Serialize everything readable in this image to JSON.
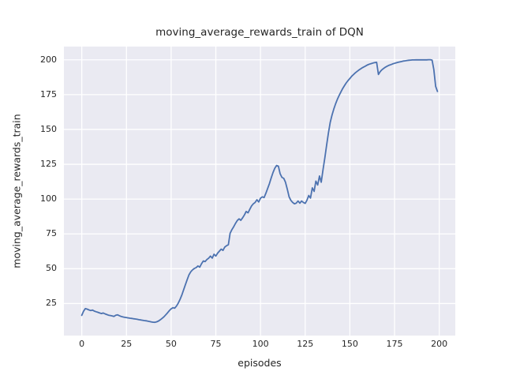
{
  "chart_data": {
    "type": "line",
    "title": "moving_average_rewards_train of DQN",
    "xlabel": "episodes",
    "ylabel": "moving_average_rewards_train",
    "x_ticks": [
      0,
      25,
      50,
      75,
      100,
      125,
      150,
      175,
      200
    ],
    "y_ticks": [
      25,
      50,
      75,
      100,
      125,
      150,
      175,
      200
    ],
    "xlim": [
      -10,
      209
    ],
    "ylim": [
      2,
      209.5
    ],
    "grid": true,
    "legend_position": "none",
    "style": {
      "line_color": "#4C72B0",
      "axes_background": "#EAEAF2",
      "grid_color": "#FFFFFF",
      "text_color": "#262626",
      "figure_background": "#FFFFFF"
    },
    "series": [
      {
        "name": "DQN",
        "points": [
          [
            0,
            16.5
          ],
          [
            1,
            19.5
          ],
          [
            2,
            21.4
          ],
          [
            3,
            21.0
          ],
          [
            4,
            20.4
          ],
          [
            5,
            20.0
          ],
          [
            6,
            20.3
          ],
          [
            7,
            19.6
          ],
          [
            8,
            19.1
          ],
          [
            9,
            18.7
          ],
          [
            10,
            18.2
          ],
          [
            11,
            17.8
          ],
          [
            12,
            18.2
          ],
          [
            13,
            17.6
          ],
          [
            14,
            17.1
          ],
          [
            15,
            16.6
          ],
          [
            16,
            16.4
          ],
          [
            17,
            16.1
          ],
          [
            18,
            15.8
          ],
          [
            19,
            16.6
          ],
          [
            20,
            16.9
          ],
          [
            21,
            16.3
          ],
          [
            22,
            15.7
          ],
          [
            23,
            15.4
          ],
          [
            24,
            15.1
          ],
          [
            25,
            14.9
          ],
          [
            26,
            14.7
          ],
          [
            27,
            14.5
          ],
          [
            28,
            14.3
          ],
          [
            29,
            14.1
          ],
          [
            30,
            13.9
          ],
          [
            31,
            13.7
          ],
          [
            32,
            13.4
          ],
          [
            33,
            13.2
          ],
          [
            34,
            13.0
          ],
          [
            35,
            12.8
          ],
          [
            36,
            12.6
          ],
          [
            37,
            12.3
          ],
          [
            38,
            12.1
          ],
          [
            39,
            11.8
          ],
          [
            40,
            11.6
          ],
          [
            41,
            11.5
          ],
          [
            42,
            11.9
          ],
          [
            43,
            12.5
          ],
          [
            44,
            13.4
          ],
          [
            45,
            14.4
          ],
          [
            46,
            15.5
          ],
          [
            47,
            16.9
          ],
          [
            48,
            18.4
          ],
          [
            49,
            19.9
          ],
          [
            50,
            21.2
          ],
          [
            51,
            22.0
          ],
          [
            52,
            21.7
          ],
          [
            53,
            23.2
          ],
          [
            54,
            25.3
          ],
          [
            55,
            28.0
          ],
          [
            56,
            31.2
          ],
          [
            57,
            34.8
          ],
          [
            58,
            38.6
          ],
          [
            59,
            42.3
          ],
          [
            60,
            45.6
          ],
          [
            61,
            47.8
          ],
          [
            62,
            49.2
          ],
          [
            63,
            50.2
          ],
          [
            64,
            50.8
          ],
          [
            65,
            52.0
          ],
          [
            66,
            51.1
          ],
          [
            67,
            53.6
          ],
          [
            68,
            55.6
          ],
          [
            69,
            55.1
          ],
          [
            70,
            56.6
          ],
          [
            71,
            57.6
          ],
          [
            72,
            59.1
          ],
          [
            73,
            57.6
          ],
          [
            74,
            60.4
          ],
          [
            75,
            59.1
          ],
          [
            76,
            61.2
          ],
          [
            77,
            62.6
          ],
          [
            78,
            64.1
          ],
          [
            79,
            63.2
          ],
          [
            80,
            65.5
          ],
          [
            81,
            66.5
          ],
          [
            82,
            67.2
          ],
          [
            83,
            75.4
          ],
          [
            84,
            78.1
          ],
          [
            85,
            80.2
          ],
          [
            86,
            82.5
          ],
          [
            87,
            84.6
          ],
          [
            88,
            85.8
          ],
          [
            89,
            84.8
          ],
          [
            90,
            86.6
          ],
          [
            91,
            88.6
          ],
          [
            92,
            91.1
          ],
          [
            93,
            90.1
          ],
          [
            94,
            92.6
          ],
          [
            95,
            95.1
          ],
          [
            96,
            96.6
          ],
          [
            97,
            97.6
          ],
          [
            98,
            99.5
          ],
          [
            99,
            97.9
          ],
          [
            100,
            100.6
          ],
          [
            101,
            101.6
          ],
          [
            102,
            101.1
          ],
          [
            103,
            104.1
          ],
          [
            104,
            107.6
          ],
          [
            105,
            111.2
          ],
          [
            106,
            115.2
          ],
          [
            107,
            119.1
          ],
          [
            108,
            122.2
          ],
          [
            109,
            124.1
          ],
          [
            110,
            123.6
          ],
          [
            111,
            118.2
          ],
          [
            112,
            115.6
          ],
          [
            113,
            114.9
          ],
          [
            114,
            112.1
          ],
          [
            115,
            107.1
          ],
          [
            116,
            101.6
          ],
          [
            117,
            99.1
          ],
          [
            118,
            97.6
          ],
          [
            119,
            96.6
          ],
          [
            120,
            97.1
          ],
          [
            121,
            98.6
          ],
          [
            122,
            97.1
          ],
          [
            123,
            98.6
          ],
          [
            124,
            97.6
          ],
          [
            125,
            96.9
          ],
          [
            126,
            99.2
          ],
          [
            127,
            102.6
          ],
          [
            128,
            100.7
          ],
          [
            129,
            108.1
          ],
          [
            130,
            105.5
          ],
          [
            131,
            112.9
          ],
          [
            132,
            110.1
          ],
          [
            133,
            116.6
          ],
          [
            134,
            112.1
          ],
          [
            135,
            121.2
          ],
          [
            136,
            129.7
          ],
          [
            137,
            138.6
          ],
          [
            138,
            147.4
          ],
          [
            139,
            155.1
          ],
          [
            140,
            160.2
          ],
          [
            141,
            164.6
          ],
          [
            142,
            168.4
          ],
          [
            143,
            171.6
          ],
          [
            144,
            174.4
          ],
          [
            145,
            177.0
          ],
          [
            146,
            179.4
          ],
          [
            147,
            181.5
          ],
          [
            148,
            183.4
          ],
          [
            149,
            185.1
          ],
          [
            150,
            186.6
          ],
          [
            151,
            188.1
          ],
          [
            152,
            189.4
          ],
          [
            153,
            190.6
          ],
          [
            154,
            191.6
          ],
          [
            155,
            192.6
          ],
          [
            156,
            193.5
          ],
          [
            157,
            194.3
          ],
          [
            158,
            195.0
          ],
          [
            159,
            195.7
          ],
          [
            160,
            196.4
          ],
          [
            161,
            196.9
          ],
          [
            162,
            197.3
          ],
          [
            163,
            197.7
          ],
          [
            164,
            198.0
          ],
          [
            165,
            198.2
          ],
          [
            166,
            189.5
          ],
          [
            167,
            191.6
          ],
          [
            168,
            192.9
          ],
          [
            169,
            193.9
          ],
          [
            170,
            194.8
          ],
          [
            171,
            195.5
          ],
          [
            172,
            196.1
          ],
          [
            173,
            196.6
          ],
          [
            174,
            197.1
          ],
          [
            175,
            197.5
          ],
          [
            176,
            197.9
          ],
          [
            177,
            198.2
          ],
          [
            178,
            198.5
          ],
          [
            179,
            198.8
          ],
          [
            180,
            199.1
          ],
          [
            181,
            199.3
          ],
          [
            182,
            199.5
          ],
          [
            183,
            199.7
          ],
          [
            184,
            199.8
          ],
          [
            185,
            199.9
          ],
          [
            186,
            199.9
          ],
          [
            187,
            200.0
          ],
          [
            188,
            200.0
          ],
          [
            189,
            200.0
          ],
          [
            190,
            200.0
          ],
          [
            191,
            200.0
          ],
          [
            192,
            200.0
          ],
          [
            193,
            200.0
          ],
          [
            194,
            200.1
          ],
          [
            195,
            200.1
          ],
          [
            196,
            199.8
          ],
          [
            197,
            193.0
          ],
          [
            198,
            181.0
          ],
          [
            199,
            177.3
          ]
        ]
      }
    ]
  }
}
